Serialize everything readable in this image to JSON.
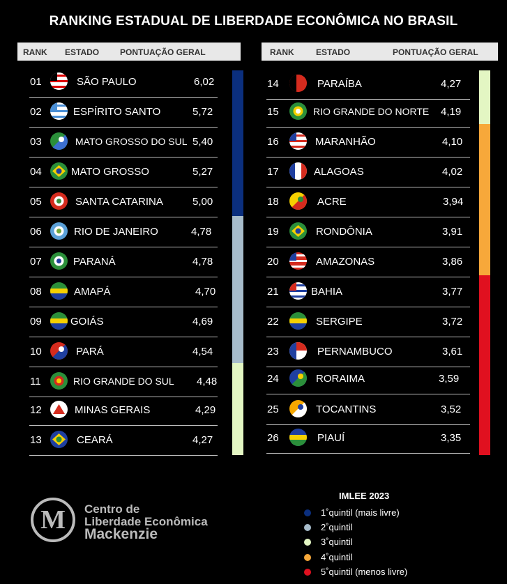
{
  "title": "RANKING ESTADUAL DE LIBERDADE ECONÔMICA NO BRASIL",
  "headers": {
    "rank": "RANK",
    "state": "ESTADO",
    "score": "PONTUAÇÃO GERAL"
  },
  "chart_data": {
    "type": "table",
    "columns": [
      "RANK",
      "ESTADO",
      "PONTUAÇÃO GERAL"
    ],
    "rows": [
      {
        "rank": "01",
        "state": "SÃO PAULO",
        "score": "6,02",
        "quintile": 1
      },
      {
        "rank": "02",
        "state": "ESPÍRITO SANTO",
        "score": "5,72",
        "quintile": 1
      },
      {
        "rank": "03",
        "state": "MATO GROSSO DO SUL",
        "score": "5,40",
        "quintile": 1
      },
      {
        "rank": "04",
        "state": "MATO GROSSO",
        "score": "5,27",
        "quintile": 1
      },
      {
        "rank": "05",
        "state": "SANTA CATARINA",
        "score": "5,00",
        "quintile": 1
      },
      {
        "rank": "06",
        "state": "RIO DE JANEIRO",
        "score": "4,78",
        "quintile": 2
      },
      {
        "rank": "07",
        "state": "PARANÁ",
        "score": "4,78",
        "quintile": 2
      },
      {
        "rank": "08",
        "state": "AMAPÁ",
        "score": "4,70",
        "quintile": 2
      },
      {
        "rank": "09",
        "state": "GOIÁS",
        "score": "4,69",
        "quintile": 2
      },
      {
        "rank": "10",
        "state": "PARÁ",
        "score": "4,54",
        "quintile": 2
      },
      {
        "rank": "11",
        "state": "RIO GRANDE DO SUL",
        "score": "4,48",
        "quintile": 3
      },
      {
        "rank": "12",
        "state": "MINAS GERAIS",
        "score": "4,29",
        "quintile": 3
      },
      {
        "rank": "13",
        "state": "CEARÁ",
        "score": "4,27",
        "quintile": 3
      },
      {
        "rank": "14",
        "state": "PARAÍBA",
        "score": "4,27",
        "quintile": 3
      },
      {
        "rank": "15",
        "state": "RIO GRANDE DO NORTE",
        "score": "4,19",
        "quintile": 3
      },
      {
        "rank": "16",
        "state": "MARANHÃO",
        "score": "4,10",
        "quintile": 4
      },
      {
        "rank": "17",
        "state": "ALAGOAS",
        "score": "4,02",
        "quintile": 4
      },
      {
        "rank": "18",
        "state": "ACRE",
        "score": "3,94",
        "quintile": 4
      },
      {
        "rank": "19",
        "state": "RONDÔNIA",
        "score": "3,91",
        "quintile": 4
      },
      {
        "rank": "20",
        "state": "AMAZONAS",
        "score": "3,86",
        "quintile": 4
      },
      {
        "rank": "21",
        "state": "BAHIA",
        "score": "3,77",
        "quintile": 5
      },
      {
        "rank": "22",
        "state": "SERGIPE",
        "score": "3,72",
        "quintile": 5
      },
      {
        "rank": "23",
        "state": "PERNAMBUCO",
        "score": "3,61",
        "quintile": 5
      },
      {
        "rank": "24",
        "state": "RORAIMA",
        "score": "3,59",
        "quintile": 5
      },
      {
        "rank": "25",
        "state": "TOCANTINS",
        "score": "3,52",
        "quintile": 5
      },
      {
        "rank": "26",
        "state": "PIAUÍ",
        "score": "3,35",
        "quintile": 5
      }
    ]
  },
  "quintile_colors": [
    "#0b2f7e",
    "#a7bccb",
    "#e3f6c3",
    "#f7a83a",
    "#e0101f"
  ],
  "legend": {
    "title": "IMLEE 2023",
    "items": [
      {
        "label": "1˚quintil (mais livre)",
        "color": "#0b2f7e"
      },
      {
        "label": "2˚quintil",
        "color": "#a7bccb"
      },
      {
        "label": "3˚quintil",
        "color": "#e3f6c3"
      },
      {
        "label": "4˚quintil",
        "color": "#f7a83a"
      },
      {
        "label": "5˚quintil (menos livre)",
        "color": "#e0101f"
      }
    ]
  },
  "logo": {
    "line1": "Centro de",
    "line2": "Liberdade Econômica",
    "line3": "Mackenzie",
    "mark": "M"
  },
  "flags": [
    {
      "colors": [
        "#d00",
        "#fff",
        "#000"
      ],
      "style": "stripes"
    },
    {
      "colors": [
        "#4a8fd6",
        "#fff",
        "#4a8fd6"
      ],
      "style": "stripes"
    },
    {
      "colors": [
        "#2b8f3a",
        "#fff",
        "#3b6fd0"
      ],
      "style": "diag"
    },
    {
      "colors": [
        "#1f3f9f",
        "#f6d000",
        "#2b8f3a"
      ],
      "style": "diamond"
    },
    {
      "colors": [
        "#d52b1e",
        "#fff",
        "#3a8f3a"
      ],
      "style": "center"
    },
    {
      "colors": [
        "#5aa0d8",
        "#fff",
        "#6fa83a"
      ],
      "style": "center"
    },
    {
      "colors": [
        "#2b8f3a",
        "#fff",
        "#1f3f9f"
      ],
      "style": "center"
    },
    {
      "colors": [
        "#2b8f3a",
        "#f6d000",
        "#1f3f9f"
      ],
      "style": "hstripes"
    },
    {
      "colors": [
        "#2b8f3a",
        "#f6d000",
        "#1f3f9f"
      ],
      "style": "hstripes"
    },
    {
      "colors": [
        "#d52b1e",
        "#fff",
        "#1f3f9f"
      ],
      "style": "diag"
    },
    {
      "colors": [
        "#2b8f3a",
        "#d52b1e",
        "#f6d000"
      ],
      "style": "center"
    },
    {
      "colors": [
        "#fff",
        "#d52b1e",
        "#fff"
      ],
      "style": "triangle"
    },
    {
      "colors": [
        "#2b8f3a",
        "#f6d000",
        "#1f3f9f"
      ],
      "style": "diamond"
    },
    {
      "colors": [
        "#000",
        "#d52b1e",
        "#d52b1e"
      ],
      "style": "half"
    },
    {
      "colors": [
        "#2b8f3a",
        "#f6d000",
        "#fff"
      ],
      "style": "center"
    },
    {
      "colors": [
        "#d52b1e",
        "#fff",
        "#1f3f9f"
      ],
      "style": "stripes"
    },
    {
      "colors": [
        "#d52b1e",
        "#fff",
        "#1f3f9f"
      ],
      "style": "vstripes"
    },
    {
      "colors": [
        "#f6d000",
        "#2b8f3a",
        "#d52b1e"
      ],
      "style": "diag"
    },
    {
      "colors": [
        "#1f3f9f",
        "#f6d000",
        "#2b8f3a"
      ],
      "style": "diamond"
    },
    {
      "colors": [
        "#fff",
        "#d52b1e",
        "#1f3f9f"
      ],
      "style": "stripes"
    },
    {
      "colors": [
        "#1f3f9f",
        "#fff",
        "#d52b1e"
      ],
      "style": "stripes"
    },
    {
      "colors": [
        "#2b8f3a",
        "#f6d000",
        "#1f3f9f"
      ],
      "style": "hstripes"
    },
    {
      "colors": [
        "#1f3f9f",
        "#fff",
        "#d52b1e"
      ],
      "style": "half"
    },
    {
      "colors": [
        "#1f3f9f",
        "#f6d000",
        "#2b8f3a"
      ],
      "style": "diag"
    },
    {
      "colors": [
        "#f6a800",
        "#1f3f9f",
        "#fff"
      ],
      "style": "diag"
    },
    {
      "colors": [
        "#1f3f9f",
        "#f6d000",
        "#2b8f3a"
      ],
      "style": "hstripes"
    }
  ]
}
